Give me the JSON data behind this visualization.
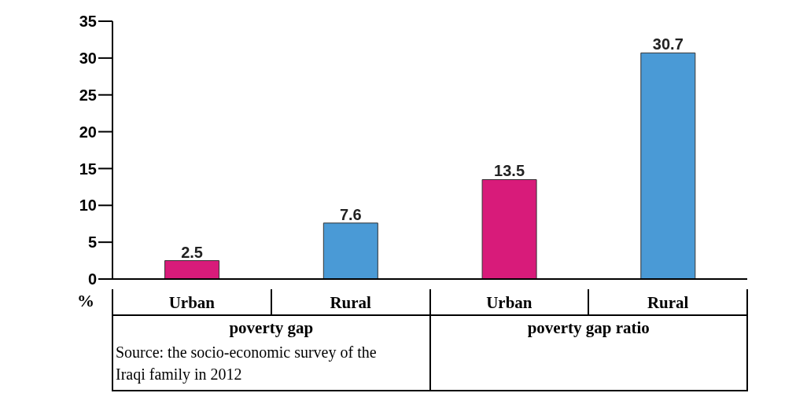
{
  "chart_data": {
    "type": "bar",
    "categories": [
      "Urban",
      "Rural",
      "Urban",
      "Rural"
    ],
    "values": [
      2.5,
      7.6,
      13.5,
      30.7
    ],
    "colors": [
      "#d81b7a",
      "#4a9ad6",
      "#d81b7a",
      "#4a9ad6"
    ],
    "ylabel": "%",
    "ylim": [
      0,
      35
    ],
    "yticks": [
      0,
      5,
      10,
      15,
      20,
      25,
      30,
      35
    ],
    "data_labels": true,
    "grid": false,
    "legend": false,
    "annotations": [
      "poverty gap",
      "poverty gap ratio",
      "Source: the socio-economic survey of the Iraqi family in 2012"
    ]
  }
}
